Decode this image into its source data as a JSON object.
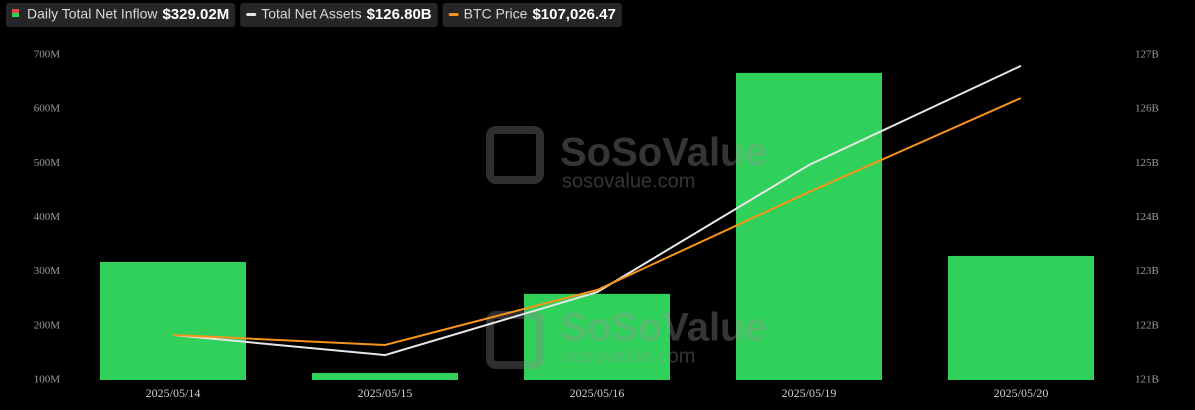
{
  "chart_data": {
    "type": "bar_line",
    "watermark": {
      "brand": "SoSoValue",
      "site": "sosovalue.com"
    },
    "categories": [
      "2025/05/14",
      "2025/05/15",
      "2025/05/16",
      "2025/05/19",
      "2025/05/20"
    ],
    "series": [
      {
        "name": "Daily Total Net Inflow",
        "color": "#2fd15a",
        "kind": "bar",
        "values": [
          318,
          113,
          259,
          667,
          329.02
        ],
        "value_labels": [
          null,
          null,
          null,
          null,
          "$329.02M"
        ]
      },
      {
        "name": "Total Net Assets",
        "color": "#e6e6e6",
        "kind": "line",
        "axis": "y2",
        "values": [
          121.83,
          121.46,
          122.62,
          124.97,
          126.8
        ],
        "value_labels": [
          null,
          null,
          null,
          null,
          "$126.80B"
        ]
      },
      {
        "name": "BTC Price",
        "color": "#f7931a",
        "kind": "line",
        "axis": "hidden",
        "values": [
          102286,
          102086,
          103186,
          105146,
          107026.47
        ],
        "value_labels": [
          null,
          null,
          null,
          null,
          "$107,026.47"
        ]
      }
    ],
    "ylim": [
      100,
      700
    ],
    "yticks": [
      {
        "value": 100,
        "label": "100M"
      },
      {
        "value": 200,
        "label": "200M"
      },
      {
        "value": 300,
        "label": "300M"
      },
      {
        "value": 400,
        "label": "400M"
      },
      {
        "value": 500,
        "label": "500M"
      },
      {
        "value": 600,
        "label": "600M"
      },
      {
        "value": 700,
        "label": "700M"
      }
    ],
    "y2lim": [
      121,
      127
    ],
    "y2ticks": [
      {
        "value": 121,
        "label": "121B"
      },
      {
        "value": 122,
        "label": "122B"
      },
      {
        "value": 123,
        "label": "123B"
      },
      {
        "value": 124,
        "label": "124B"
      },
      {
        "value": 125,
        "label": "125B"
      },
      {
        "value": 126,
        "label": "126B"
      },
      {
        "value": 127,
        "label": "127B"
      }
    ]
  }
}
